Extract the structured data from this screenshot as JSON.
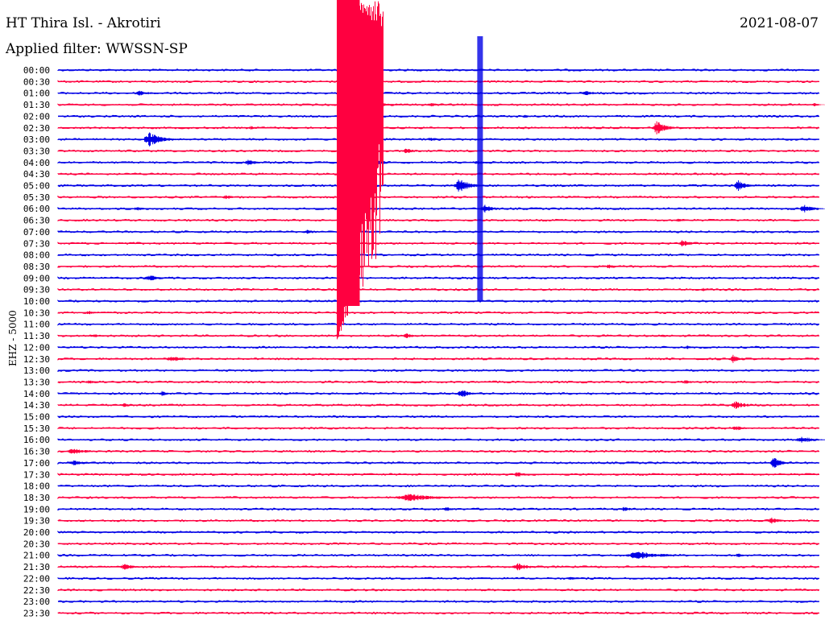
{
  "header": {
    "station": "HT Thira Isl. - Akrotiri",
    "date": "2021-08-07",
    "filter": "Applied filter: WWSSN-SP",
    "channel_label": "EHZ - 5000"
  },
  "colors": {
    "blue": "#0000e6",
    "red": "#ff0040"
  },
  "chart_data": {
    "type": "line",
    "rows": [
      "00:00",
      "00:30",
      "01:00",
      "01:30",
      "02:00",
      "02:30",
      "03:00",
      "03:30",
      "04:00",
      "04:30",
      "05:00",
      "05:30",
      "06:00",
      "06:30",
      "07:00",
      "07:30",
      "08:00",
      "08:30",
      "09:00",
      "09:30",
      "10:00",
      "10:30",
      "11:00",
      "11:30",
      "12:00",
      "12:30",
      "13:00",
      "13:30",
      "14:00",
      "14:30",
      "15:00",
      "15:30",
      "16:00",
      "16:30",
      "17:00",
      "17:30",
      "18:00",
      "18:30",
      "19:00",
      "19:30",
      "20:00",
      "20:30",
      "21:00",
      "21:30",
      "22:00",
      "22:30",
      "23:00",
      "23:30"
    ],
    "row_minutes": 30,
    "series_colors_alternating": [
      "blue",
      "red"
    ],
    "events": [
      {
        "row": 0,
        "min": 1.8,
        "amp": 0.15,
        "dur": 1
      },
      {
        "row": 2,
        "min": 3.2,
        "amp": 0.4,
        "dur": 1.2
      },
      {
        "row": 2,
        "min": 20.8,
        "amp": 0.35,
        "dur": 1
      },
      {
        "row": 3,
        "min": 12.5,
        "amp": 0.35,
        "dur": 2
      },
      {
        "row": 3,
        "min": 14.7,
        "amp": 0.3,
        "dur": 1
      },
      {
        "row": 3,
        "min": 29.8,
        "amp": 0.3,
        "dur": 0.5
      },
      {
        "row": 4,
        "min": 11.2,
        "amp": 0.4,
        "dur": 1
      },
      {
        "row": 4,
        "min": 18.4,
        "amp": 0.2,
        "dur": 0.6
      },
      {
        "row": 5,
        "min": 7.6,
        "amp": 0.25,
        "dur": 0.8
      },
      {
        "row": 5,
        "min": 20.8,
        "amp": 0.2,
        "dur": 0.6
      },
      {
        "row": 5,
        "min": 23.6,
        "amp": 1.0,
        "dur": 1
      },
      {
        "row": 6,
        "min": 3.6,
        "amp": 1.0,
        "dur": 1.4
      },
      {
        "row": 6,
        "min": 14.7,
        "amp": 0.3,
        "dur": 0.7
      },
      {
        "row": 7,
        "min": 13.7,
        "amp": 0.45,
        "dur": 0.8
      },
      {
        "row": 8,
        "min": 7.5,
        "amp": 0.4,
        "dur": 1
      },
      {
        "row": 8,
        "min": 12.6,
        "amp": 0.4,
        "dur": 1
      },
      {
        "row": 8,
        "min": 16.5,
        "amp": 0.35,
        "dur": 0.7
      },
      {
        "row": 10,
        "min": 15.8,
        "amp": 1.0,
        "dur": 1.2
      },
      {
        "row": 10,
        "min": 26.8,
        "amp": 0.8,
        "dur": 0.9
      },
      {
        "row": 11,
        "min": 6.6,
        "amp": 0.3,
        "dur": 1
      },
      {
        "row": 12,
        "min": 3.1,
        "amp": 0.3,
        "dur": 0.8
      },
      {
        "row": 12,
        "min": 16.8,
        "amp": 0.6,
        "dur": 1
      },
      {
        "row": 12,
        "min": 29.4,
        "amp": 0.6,
        "dur": 1
      },
      {
        "row": 13,
        "min": 24.4,
        "amp": 0.3,
        "dur": 0.6
      },
      {
        "row": 14,
        "min": 9.8,
        "amp": 0.35,
        "dur": 0.7
      },
      {
        "row": 15,
        "min": 24.6,
        "amp": 0.5,
        "dur": 1
      },
      {
        "row": 17,
        "min": 21.7,
        "amp": 0.3,
        "dur": 0.8
      },
      {
        "row": 18,
        "min": 3.6,
        "amp": 0.45,
        "dur": 1.2
      },
      {
        "row": 19,
        "min": 25.4,
        "amp": 0.25,
        "dur": 0.8
      },
      {
        "row": 21,
        "min": 1.2,
        "amp": 0.25,
        "dur": 1
      },
      {
        "row": 23,
        "min": 1.4,
        "amp": 0.25,
        "dur": 1
      },
      {
        "row": 23,
        "min": 13.7,
        "amp": 0.4,
        "dur": 0.8
      },
      {
        "row": 23,
        "min": 23.8,
        "amp": 0.3,
        "dur": 0.5
      },
      {
        "row": 24,
        "min": 24.8,
        "amp": 0.25,
        "dur": 0.7
      },
      {
        "row": 25,
        "min": 4.5,
        "amp": 0.4,
        "dur": 1.5
      },
      {
        "row": 25,
        "min": 26.6,
        "amp": 0.55,
        "dur": 0.8
      },
      {
        "row": 27,
        "min": 1.2,
        "amp": 0.3,
        "dur": 0.8
      },
      {
        "row": 27,
        "min": 24.7,
        "amp": 0.3,
        "dur": 0.8
      },
      {
        "row": 28,
        "min": 4.1,
        "amp": 0.35,
        "dur": 0.8
      },
      {
        "row": 28,
        "min": 15.9,
        "amp": 0.6,
        "dur": 1
      },
      {
        "row": 29,
        "min": 2.6,
        "amp": 0.3,
        "dur": 1
      },
      {
        "row": 29,
        "min": 26.7,
        "amp": 0.55,
        "dur": 1.2
      },
      {
        "row": 31,
        "min": 26.7,
        "amp": 0.4,
        "dur": 1
      },
      {
        "row": 32,
        "min": 29.3,
        "amp": 0.5,
        "dur": 1.4
      },
      {
        "row": 33,
        "min": 0.6,
        "amp": 0.45,
        "dur": 1.5
      },
      {
        "row": 34,
        "min": 0.6,
        "amp": 0.4,
        "dur": 1.2
      },
      {
        "row": 34,
        "min": 28.2,
        "amp": 0.8,
        "dur": 0.8
      },
      {
        "row": 35,
        "min": 18.1,
        "amp": 0.4,
        "dur": 0.8
      },
      {
        "row": 37,
        "min": 13.8,
        "amp": 0.55,
        "dur": 3
      },
      {
        "row": 38,
        "min": 15.3,
        "amp": 0.3,
        "dur": 1
      },
      {
        "row": 38,
        "min": 22.3,
        "amp": 0.3,
        "dur": 1
      },
      {
        "row": 39,
        "min": 28.1,
        "amp": 0.45,
        "dur": 1
      },
      {
        "row": 42,
        "min": 22.8,
        "amp": 0.55,
        "dur": 3
      },
      {
        "row": 42,
        "min": 26.8,
        "amp": 0.3,
        "dur": 0.7
      },
      {
        "row": 43,
        "min": 2.6,
        "amp": 0.45,
        "dur": 1
      },
      {
        "row": 43,
        "min": 18.1,
        "amp": 0.55,
        "dur": 1.2
      },
      {
        "row": 44,
        "min": 20.2,
        "amp": 0.3,
        "dur": 0.8
      }
    ],
    "main_event": {
      "row": 0,
      "min": 11.0,
      "amp": 3.0,
      "dur": 1.5,
      "span_rows": 24
    },
    "second_event": {
      "row": 0,
      "min": 16.6,
      "amp": 3.0,
      "dur": 0.1,
      "span_rows": 20
    }
  }
}
